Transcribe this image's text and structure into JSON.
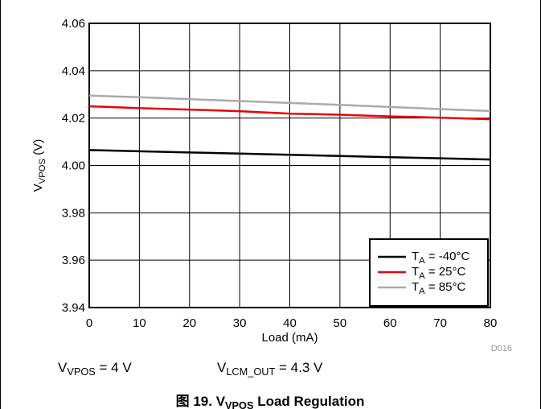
{
  "chart_data": {
    "type": "line",
    "y_label": {
      "main": "V",
      "sub": "VPOS",
      "rest": " (V)"
    },
    "x_label": "Load (mA)",
    "code": "D016",
    "annotations": [
      {
        "main": "V",
        "sub": "VPOS",
        "rest": " = 4 V"
      },
      {
        "main": "V",
        "sub": "LCM_OUT",
        "rest": " = 4.3 V"
      }
    ],
    "caption": {
      "main": "图 19. V",
      "sub": "VPOS",
      "rest": " Load Regulation"
    },
    "x": [
      0,
      10,
      20,
      30,
      40,
      50,
      60,
      70,
      80
    ],
    "series": [
      {
        "name": [
          "T",
          "A",
          " = -40°C"
        ],
        "color": "#000000",
        "values": [
          4.0065,
          4.006,
          4.0055,
          4.005,
          4.0045,
          4.004,
          4.0035,
          4.003,
          4.0025
        ]
      },
      {
        "name": [
          "T",
          "A",
          " = 25°C"
        ],
        "color": "#e8000b",
        "values": [
          4.025,
          4.0242,
          4.0236,
          4.0229,
          4.0219,
          4.0214,
          4.0207,
          4.0202,
          4.0195
        ]
      },
      {
        "name": [
          "T",
          "A",
          " = 85°C"
        ],
        "color": "#aaaaaa",
        "values": [
          4.0295,
          4.0288,
          4.028,
          4.0272,
          4.0264,
          4.0256,
          4.0247,
          4.0238,
          4.023
        ]
      }
    ],
    "xlim": [
      0,
      80
    ],
    "xticks": [
      0,
      10,
      20,
      30,
      40,
      50,
      60,
      70,
      80
    ],
    "ylim": [
      3.94,
      4.06
    ],
    "yticks": [
      3.94,
      3.96,
      3.98,
      {
        "value": 4,
        "label": "4.00"
      },
      4.02,
      4.04,
      4.06
    ],
    "grid": true,
    "legend": "lower right"
  }
}
